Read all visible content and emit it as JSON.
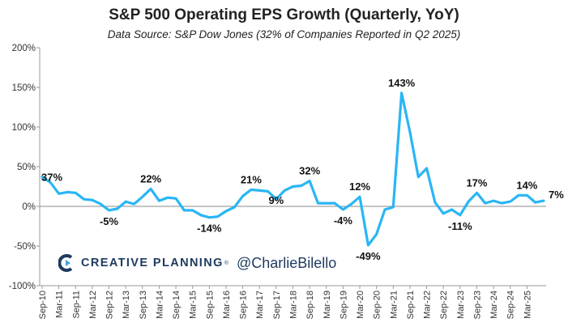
{
  "chart_data": {
    "type": "line",
    "title": "S&P 500 Operating EPS Growth (Quarterly, YoY)",
    "subtitle": "Data Source: S&P Dow Jones (32% of Companies Reported in Q2 2025)",
    "ylim": [
      -100,
      200
    ],
    "yticks": [
      -100,
      -50,
      0,
      50,
      100,
      150,
      200
    ],
    "ytick_labels": [
      "-100%",
      "-50%",
      "0%",
      "50%",
      "100%",
      "150%",
      "200%"
    ],
    "xtick_labels": [
      "Sep-10",
      "Mar-11",
      "Sep-11",
      "Mar-12",
      "Sep-12",
      "Mar-13",
      "Sep-13",
      "Mar-14",
      "Sep-14",
      "Mar-15",
      "Sep-15",
      "Mar-16",
      "Sep-16",
      "Mar-17",
      "Sep-17",
      "Mar-18",
      "Sep-18",
      "Mar-19",
      "Sep-19",
      "Mar-20",
      "Sep-20",
      "Mar-21",
      "Sep-21",
      "Mar-22",
      "Sep-22",
      "Mar-23",
      "Sep-23",
      "Mar-24",
      "Sep-24",
      "Mar-25"
    ],
    "grid": "horizontal",
    "line_color": "#29b6f6",
    "series": [
      {
        "values": [
          37,
          30,
          16,
          18,
          17,
          9,
          8,
          3,
          -5,
          -3,
          6,
          3,
          12,
          22,
          7,
          11,
          10,
          -5,
          -5,
          -11,
          -14,
          -13,
          -6,
          -1,
          13,
          21,
          20,
          19,
          9,
          20,
          25,
          26,
          32,
          4,
          4,
          4,
          -4,
          3,
          12,
          -49,
          -35,
          -4,
          -1,
          143,
          94,
          37,
          48,
          5,
          -9,
          -4,
          -11,
          6,
          17,
          4,
          7,
          4,
          6,
          14,
          14,
          5,
          7
        ]
      }
    ],
    "annotations": [
      {
        "index": 0,
        "label": "37%"
      },
      {
        "index": 8,
        "label": "-5%"
      },
      {
        "index": 13,
        "label": "22%"
      },
      {
        "index": 20,
        "label": "-14%"
      },
      {
        "index": 25,
        "label": "21%"
      },
      {
        "index": 28,
        "label": "9%"
      },
      {
        "index": 32,
        "label": "32%"
      },
      {
        "index": 36,
        "label": "-4%"
      },
      {
        "index": 38,
        "label": "12%"
      },
      {
        "index": 39,
        "label": "-49%"
      },
      {
        "index": 43,
        "label": "143%"
      },
      {
        "index": 50,
        "label": "-11%"
      },
      {
        "index": 52,
        "label": "17%"
      },
      {
        "index": 58,
        "label": "14%"
      },
      {
        "index": 60,
        "label": "7%"
      }
    ]
  },
  "branding": {
    "company": "CREATIVE PLANNING",
    "tm": "®",
    "handle": "@CharlieBilello",
    "brand_color": "#1e3a5f"
  }
}
